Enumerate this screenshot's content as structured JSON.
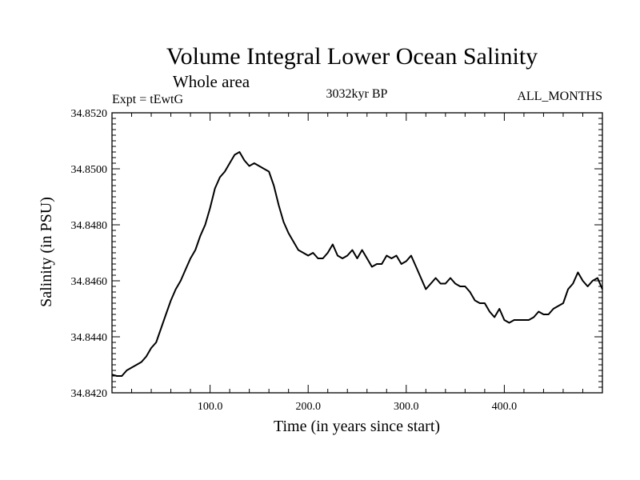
{
  "chart_data": {
    "type": "line",
    "title": "Volume Integral Lower Ocean Salinity",
    "subtitle": "Whole area",
    "annotations": {
      "left": "Expt = tEwtG",
      "center": "3032kyr BP",
      "right": "ALL_MONTHS"
    },
    "xlabel": "Time (in years since start)",
    "ylabel": "Salinity (in PSU)",
    "xlim": [
      0,
      500
    ],
    "ylim": [
      34.842,
      34.852
    ],
    "x_ticks": [
      100,
      200,
      300,
      400
    ],
    "x_tick_labels": [
      "100.0",
      "200.0",
      "300.0",
      "400.0"
    ],
    "y_ticks": [
      34.842,
      34.844,
      34.846,
      34.848,
      34.85,
      34.852
    ],
    "y_tick_labels": [
      "34.8420",
      "34.8440",
      "34.8460",
      "34.8480",
      "34.8500",
      "34.8520"
    ],
    "grid": false,
    "series": [
      {
        "name": "Salinity",
        "color": "#000000",
        "x": [
          0,
          5,
          10,
          15,
          20,
          25,
          30,
          35,
          40,
          45,
          50,
          55,
          60,
          65,
          70,
          75,
          80,
          85,
          90,
          95,
          100,
          105,
          110,
          115,
          120,
          125,
          130,
          135,
          140,
          145,
          150,
          155,
          160,
          165,
          170,
          175,
          180,
          185,
          190,
          195,
          200,
          205,
          210,
          215,
          220,
          225,
          230,
          235,
          240,
          245,
          250,
          255,
          260,
          265,
          270,
          275,
          280,
          285,
          290,
          295,
          300,
          305,
          310,
          315,
          320,
          325,
          330,
          335,
          340,
          345,
          350,
          355,
          360,
          365,
          370,
          375,
          380,
          385,
          390,
          395,
          400,
          405,
          410,
          415,
          420,
          425,
          430,
          435,
          440,
          445,
          450,
          455,
          460,
          465,
          470,
          475,
          480,
          485,
          490,
          495,
          500
        ],
        "values": [
          34.84265,
          34.8426,
          34.8426,
          34.8428,
          34.8429,
          34.843,
          34.8431,
          34.8433,
          34.8436,
          34.8438,
          34.8443,
          34.8448,
          34.8453,
          34.8457,
          34.846,
          34.8464,
          34.8468,
          34.8471,
          34.8476,
          34.848,
          34.8486,
          34.8493,
          34.8497,
          34.8499,
          34.8502,
          34.8505,
          34.8506,
          34.8503,
          34.8501,
          34.8502,
          34.8501,
          34.85,
          34.8499,
          34.8494,
          34.8487,
          34.8481,
          34.8477,
          34.8474,
          34.8471,
          34.847,
          34.8469,
          34.847,
          34.8468,
          34.8468,
          34.847,
          34.8473,
          34.8469,
          34.8468,
          34.8469,
          34.8471,
          34.8468,
          34.8471,
          34.8468,
          34.8465,
          34.8466,
          34.8466,
          34.8469,
          34.8468,
          34.8469,
          34.8466,
          34.8467,
          34.8469,
          34.8465,
          34.8461,
          34.8457,
          34.8459,
          34.8461,
          34.8459,
          34.8459,
          34.8461,
          34.8459,
          34.8458,
          34.8458,
          34.8456,
          34.8453,
          34.8452,
          34.8452,
          34.8449,
          34.8447,
          34.845,
          34.8446,
          34.8445,
          34.8446,
          34.8446,
          34.8446,
          34.8446,
          34.8447,
          34.8449,
          34.8448,
          34.8448,
          34.845,
          34.8451,
          34.8452,
          34.8457,
          34.8459,
          34.8463,
          34.846,
          34.8458,
          34.846,
          34.8461,
          34.8457
        ]
      }
    ]
  }
}
